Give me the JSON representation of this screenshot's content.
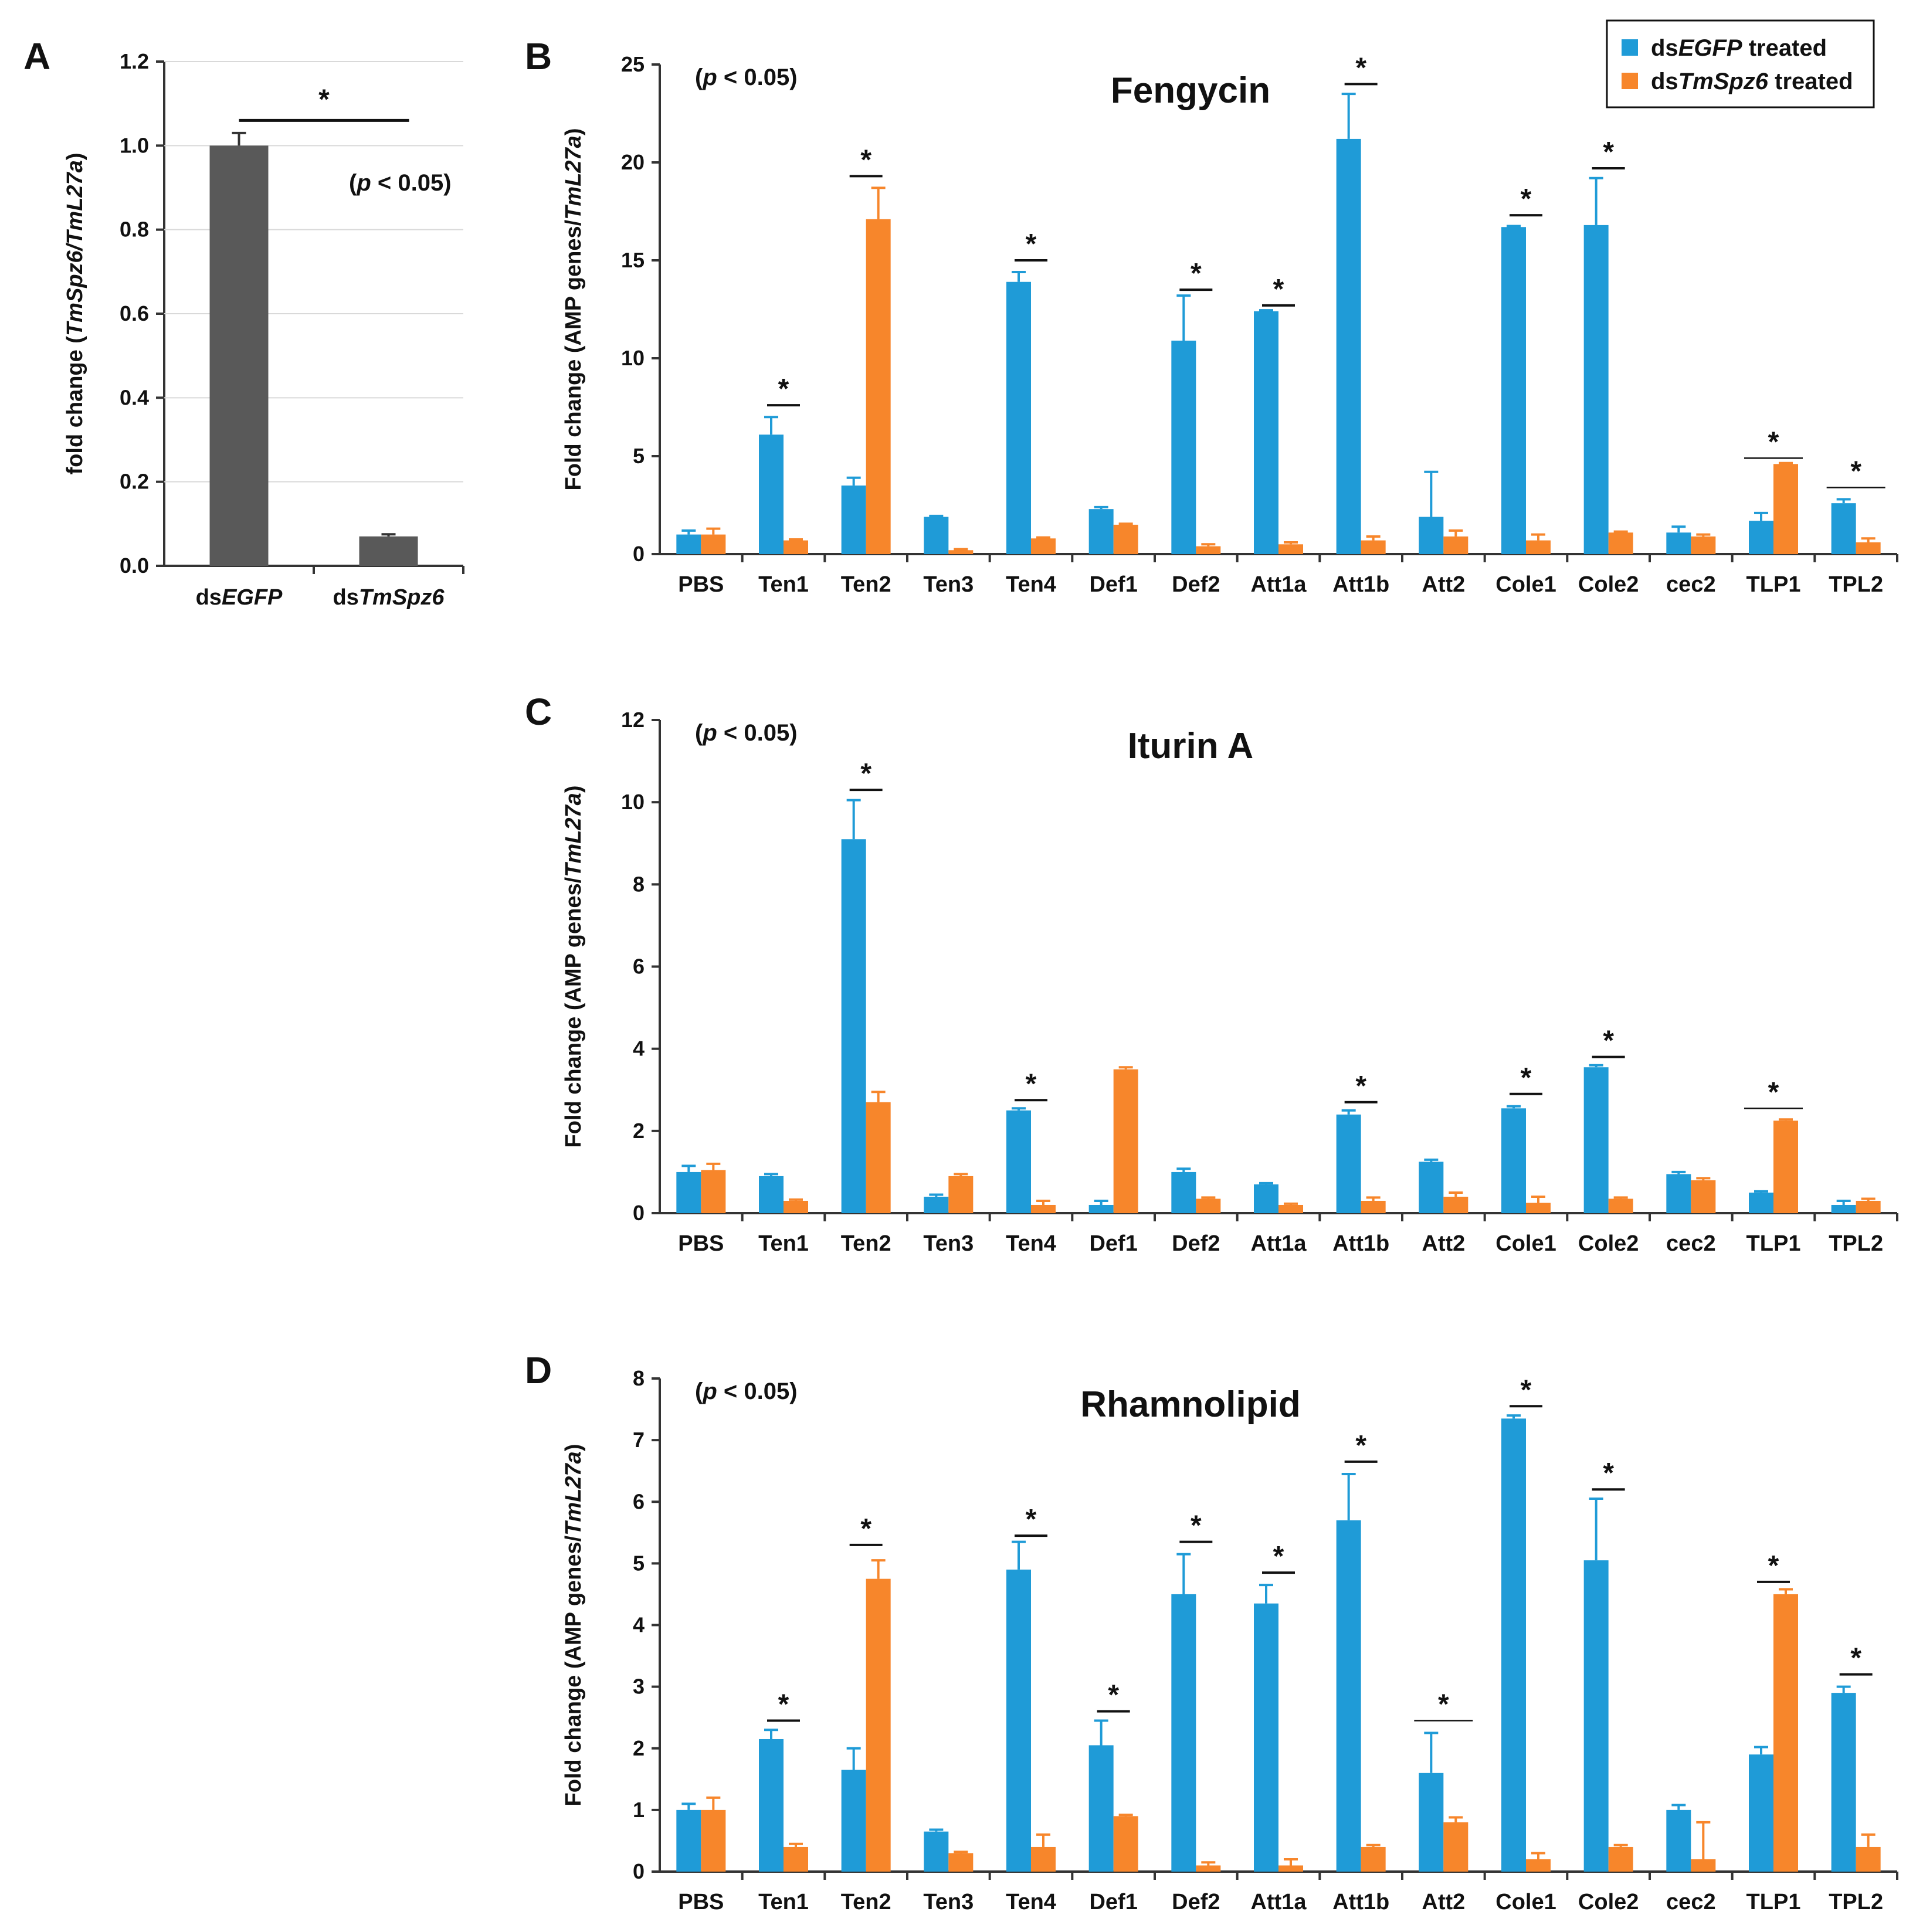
{
  "colors": {
    "egfp": "#1f9bd7",
    "spz6": "#f7862b",
    "gray": "#595959",
    "text": "#111111"
  },
  "legend": {
    "egfp": {
      "prefix": "ds",
      "gene": "EGFP",
      "suffix": " treated"
    },
    "spz6": {
      "prefix": "ds",
      "gene": "TmSpz6",
      "suffix": " treated"
    }
  },
  "chart_data": [
    {
      "panel": "A",
      "type": "bar",
      "title": "",
      "ylabel": {
        "pre": "fold change (",
        "italic": "TmSpz6/TmL27a",
        "post": ")"
      },
      "ylim": [
        0,
        1.2
      ],
      "yticks": [
        "0.0",
        "0.2",
        "0.4",
        "0.6",
        "0.8",
        "1.0",
        "1.2"
      ],
      "categories": [
        {
          "pre": "ds",
          "italic": "EGFP"
        },
        {
          "pre": "ds",
          "italic": "TmSpz6"
        }
      ],
      "values": [
        1.0,
        0.07
      ],
      "errors": [
        0.03,
        0.005
      ],
      "significance": {
        "label": "*",
        "between": [
          0,
          1
        ],
        "y": 1.06
      },
      "pnote": {
        "pre": "(",
        "italic": "p",
        "post": " < 0.05)"
      },
      "grid": true
    },
    {
      "panel": "B",
      "type": "bar",
      "title": "Fengycin",
      "ylabel": {
        "pre": "Fold change (AMP genes/",
        "italic": "TmL27a",
        "post": ")"
      },
      "ylim": [
        0,
        25
      ],
      "yticks": [
        "0",
        "5",
        "10",
        "15",
        "20",
        "25"
      ],
      "categories": [
        "PBS",
        "Ten1",
        "Ten2",
        "Ten3",
        "Ten4",
        "Def1",
        "Def2",
        "Att1a",
        "Att1b",
        "Att2",
        "Cole1",
        "Cole2",
        "cec2",
        "TLP1",
        "TPL2"
      ],
      "series": [
        {
          "name": "dsEGFP treated",
          "values": [
            1.0,
            6.1,
            3.5,
            1.9,
            13.9,
            2.3,
            10.9,
            12.4,
            21.2,
            1.9,
            16.7,
            16.8,
            1.1,
            1.7,
            2.6
          ],
          "errors": [
            0.2,
            0.9,
            0.4,
            0.05,
            0.5,
            0.1,
            2.3,
            0.05,
            2.3,
            2.3,
            0.05,
            2.4,
            0.3,
            0.4,
            0.2
          ]
        },
        {
          "name": "dsTmSpz6 treated",
          "values": [
            1.0,
            0.7,
            17.1,
            0.2,
            0.8,
            1.5,
            0.4,
            0.5,
            0.7,
            0.9,
            0.7,
            1.1,
            0.9,
            4.6,
            0.6
          ],
          "errors": [
            0.3,
            0.05,
            1.6,
            0.05,
            0.05,
            0.05,
            0.1,
            0.1,
            0.2,
            0.3,
            0.3,
            0.05,
            0.1,
            0.05,
            0.2
          ]
        }
      ],
      "significance": [
        {
          "cat": 1,
          "y": 7.6,
          "label": "*"
        },
        {
          "cat": 2,
          "y": 19.3,
          "label": "*"
        },
        {
          "cat": 4,
          "y": 15.0,
          "label": "*"
        },
        {
          "cat": 6,
          "y": 13.5,
          "label": "*"
        },
        {
          "cat": 7,
          "y": 12.7,
          "label": "*"
        },
        {
          "cat": 8,
          "y": 24.0,
          "label": "*"
        },
        {
          "cat": 10,
          "y": 17.3,
          "label": "*"
        },
        {
          "cat": 11,
          "y": 19.7,
          "label": "*"
        },
        {
          "cat": 13,
          "y": 4.9,
          "label": "*",
          "wide": true
        },
        {
          "cat": 14,
          "y": 3.4,
          "label": "*",
          "wide": true
        }
      ],
      "pnote": {
        "pre": "(",
        "italic": "p",
        "post": " < 0.05)"
      },
      "legend": "top-right",
      "grid": false
    },
    {
      "panel": "C",
      "type": "bar",
      "title": "Iturin A",
      "ylabel": {
        "pre": "Fold change (AMP genes/",
        "italic": "TmL27a",
        "post": ")"
      },
      "ylim": [
        0,
        12
      ],
      "yticks": [
        "0",
        "2",
        "4",
        "6",
        "8",
        "10",
        "12"
      ],
      "categories": [
        "PBS",
        "Ten1",
        "Ten2",
        "Ten3",
        "Ten4",
        "Def1",
        "Def2",
        "Att1a",
        "Att1b",
        "Att2",
        "Cole1",
        "Cole2",
        "cec2",
        "TLP1",
        "TPL2"
      ],
      "series": [
        {
          "name": "dsEGFP treated",
          "values": [
            1.0,
            0.9,
            9.1,
            0.4,
            2.5,
            0.2,
            1.0,
            0.7,
            2.4,
            1.25,
            2.55,
            3.55,
            0.95,
            0.5,
            0.2
          ],
          "errors": [
            0.15,
            0.05,
            0.95,
            0.05,
            0.05,
            0.1,
            0.08,
            0.03,
            0.1,
            0.05,
            0.05,
            0.05,
            0.05,
            0.03,
            0.1
          ]
        },
        {
          "name": "dsTmSpz6 treated",
          "values": [
            1.05,
            0.3,
            2.7,
            0.9,
            0.2,
            3.5,
            0.35,
            0.2,
            0.3,
            0.4,
            0.25,
            0.35,
            0.8,
            2.25,
            0.3
          ],
          "errors": [
            0.15,
            0.03,
            0.25,
            0.05,
            0.1,
            0.05,
            0.03,
            0.03,
            0.08,
            0.1,
            0.15,
            0.03,
            0.05,
            0.03,
            0.05
          ]
        }
      ],
      "significance": [
        {
          "cat": 2,
          "y": 10.3,
          "label": "*"
        },
        {
          "cat": 4,
          "y": 2.75,
          "label": "*"
        },
        {
          "cat": 8,
          "y": 2.7,
          "label": "*"
        },
        {
          "cat": 10,
          "y": 2.9,
          "label": "*"
        },
        {
          "cat": 11,
          "y": 3.8,
          "label": "*"
        },
        {
          "cat": 13,
          "y": 2.55,
          "label": "*",
          "wide": true
        }
      ],
      "pnote": {
        "pre": "(",
        "italic": "p",
        "post": " < 0.05)"
      },
      "grid": false
    },
    {
      "panel": "D",
      "type": "bar",
      "title": "Rhamnolipid",
      "ylabel": {
        "pre": "Fold change (AMP genes/",
        "italic": "TmL27a",
        "post": ")"
      },
      "ylim": [
        0,
        8
      ],
      "yticks": [
        "0",
        "1",
        "2",
        "3",
        "4",
        "5",
        "6",
        "7",
        "8"
      ],
      "categories": [
        "PBS",
        "Ten1",
        "Ten2",
        "Ten3",
        "Ten4",
        "Def1",
        "Def2",
        "Att1a",
        "Att1b",
        "Att2",
        "Cole1",
        "Cole2",
        "cec2",
        "TLP1",
        "TPL2"
      ],
      "series": [
        {
          "name": "dsEGFP treated",
          "values": [
            1.0,
            2.15,
            1.65,
            0.65,
            4.9,
            2.05,
            4.5,
            4.35,
            5.7,
            1.6,
            7.35,
            5.05,
            1.0,
            1.9,
            2.9
          ],
          "errors": [
            0.1,
            0.15,
            0.35,
            0.03,
            0.45,
            0.4,
            0.65,
            0.3,
            0.75,
            0.65,
            0.05,
            1.0,
            0.08,
            0.12,
            0.1
          ]
        },
        {
          "name": "dsTmSpz6 treated",
          "values": [
            1.0,
            0.4,
            4.75,
            0.3,
            0.4,
            0.9,
            0.1,
            0.1,
            0.4,
            0.8,
            0.2,
            0.4,
            0.2,
            4.5,
            0.4
          ],
          "errors": [
            0.2,
            0.05,
            0.3,
            0.02,
            0.2,
            0.02,
            0.05,
            0.1,
            0.03,
            0.08,
            0.1,
            0.03,
            0.6,
            0.08,
            0.2
          ]
        }
      ],
      "significance": [
        {
          "cat": 1,
          "y": 2.45,
          "label": "*"
        },
        {
          "cat": 2,
          "y": 5.3,
          "label": "*"
        },
        {
          "cat": 4,
          "y": 5.45,
          "label": "*"
        },
        {
          "cat": 5,
          "y": 2.6,
          "label": "*"
        },
        {
          "cat": 6,
          "y": 5.35,
          "label": "*"
        },
        {
          "cat": 7,
          "y": 4.85,
          "label": "*"
        },
        {
          "cat": 8,
          "y": 6.65,
          "label": "*"
        },
        {
          "cat": 9,
          "y": 2.45,
          "label": "*",
          "wide": true
        },
        {
          "cat": 10,
          "y": 7.55,
          "label": "*"
        },
        {
          "cat": 11,
          "y": 6.2,
          "label": "*"
        },
        {
          "cat": 13,
          "y": 4.7,
          "label": "*"
        },
        {
          "cat": 14,
          "y": 3.2,
          "label": "*"
        }
      ],
      "pnote": {
        "pre": "(",
        "italic": "p",
        "post": " < 0.05)"
      },
      "grid": false
    }
  ]
}
